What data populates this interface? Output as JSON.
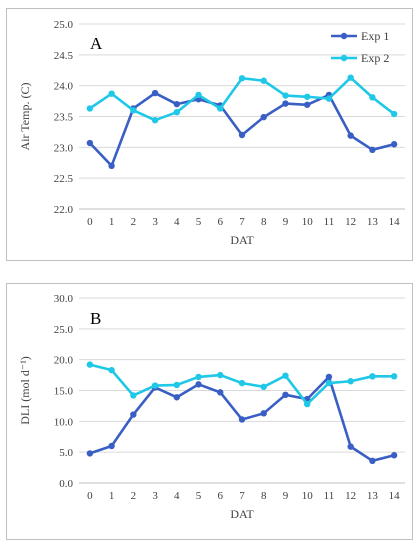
{
  "chart_data": [
    {
      "type": "line",
      "panel_label": "A",
      "title": "",
      "xlabel": "DAT",
      "ylabel": "Air Temp. (C)",
      "x": [
        0,
        1,
        2,
        3,
        4,
        5,
        6,
        7,
        8,
        9,
        10,
        11,
        12,
        13,
        14
      ],
      "ylim": [
        22.0,
        25.0
      ],
      "yticks": [
        "22.0",
        "22.5",
        "23.0",
        "23.5",
        "24.0",
        "24.5",
        "25.0"
      ],
      "grid": "horizontal",
      "legend_position": "top-right",
      "series": [
        {
          "name": "Exp 1",
          "color": "#3a5fc4",
          "values": [
            23.07,
            22.7,
            23.63,
            23.88,
            23.7,
            23.78,
            23.68,
            23.2,
            23.49,
            23.71,
            23.69,
            23.85,
            23.19,
            22.96,
            23.05
          ]
        },
        {
          "name": "Exp 2",
          "color": "#1ec8e6",
          "values": [
            23.63,
            23.87,
            23.6,
            23.44,
            23.57,
            23.85,
            23.63,
            24.12,
            24.08,
            23.84,
            23.82,
            23.79,
            24.13,
            23.81,
            23.54
          ]
        }
      ]
    },
    {
      "type": "line",
      "panel_label": "B",
      "title": "",
      "xlabel": "DAT",
      "ylabel": "DLI (mol d⁻¹)",
      "x": [
        0,
        1,
        2,
        3,
        4,
        5,
        6,
        7,
        8,
        9,
        10,
        11,
        12,
        13,
        14
      ],
      "ylim": [
        0.0,
        30.0
      ],
      "yticks": [
        "0.0",
        "5.0",
        "10.0",
        "15.0",
        "20.0",
        "25.0",
        "30.0"
      ],
      "grid": "horizontal",
      "legend_position": "none",
      "series": [
        {
          "name": "Exp 1",
          "color": "#3a5fc4",
          "values": [
            4.8,
            6.0,
            11.1,
            15.5,
            13.9,
            16.0,
            14.7,
            10.3,
            11.3,
            14.3,
            13.6,
            17.2,
            5.9,
            3.6,
            4.5
          ]
        },
        {
          "name": "Exp 2",
          "color": "#1ec8e6",
          "values": [
            19.2,
            18.3,
            14.2,
            15.8,
            15.9,
            17.2,
            17.5,
            16.2,
            15.6,
            17.4,
            12.8,
            16.2,
            16.5,
            17.3,
            17.3
          ]
        }
      ]
    }
  ]
}
